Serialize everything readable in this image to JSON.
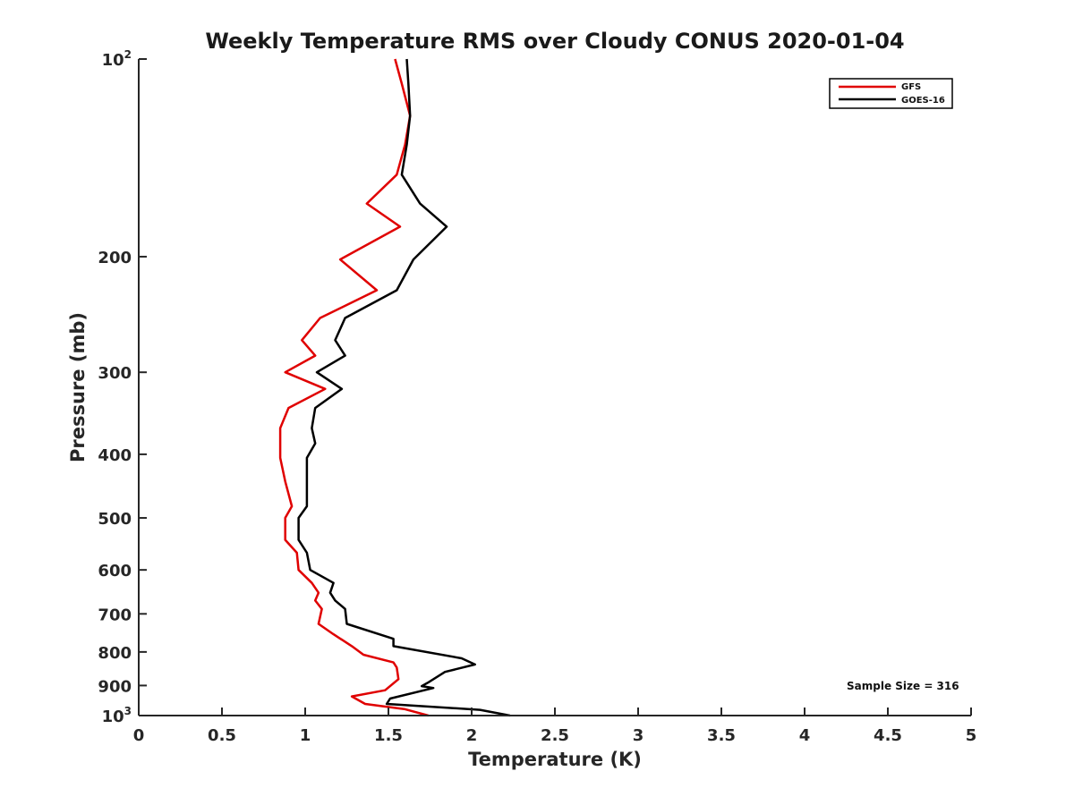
{
  "chart_data": {
    "type": "line",
    "title": "Weekly Temperature RMS over Cloudy CONUS 2020-01-04",
    "xlabel": "Temperature (K)",
    "ylabel": "Pressure (mb)",
    "xlim": [
      0,
      5
    ],
    "ylim": [
      100,
      1000
    ],
    "yscale": "log",
    "y_reversed": true,
    "grid": false,
    "xticks": [
      0,
      0.5,
      1,
      1.5,
      2,
      2.5,
      3,
      3.5,
      4,
      4.5,
      5
    ],
    "xtick_labels": [
      "0",
      "0.5",
      "1",
      "1.5",
      "2",
      "2.5",
      "3",
      "3.5",
      "4",
      "4.5",
      "5"
    ],
    "yticks": [
      100,
      200,
      300,
      400,
      500,
      600,
      700,
      800,
      900,
      1000
    ],
    "ytick_labels": [
      {
        "base": "10",
        "exp": "2"
      },
      {
        "base": "200",
        "exp": ""
      },
      {
        "base": "300",
        "exp": ""
      },
      {
        "base": "400",
        "exp": ""
      },
      {
        "base": "500",
        "exp": ""
      },
      {
        "base": "600",
        "exp": ""
      },
      {
        "base": "700",
        "exp": ""
      },
      {
        "base": "800",
        "exp": ""
      },
      {
        "base": "900",
        "exp": ""
      },
      {
        "base": "10",
        "exp": "3"
      }
    ],
    "legend_position": "top-right",
    "annotation": "Sample Size = 316",
    "series": [
      {
        "name": "GFS",
        "color": "#e00000",
        "points": [
          [
            1.54,
            100
          ],
          [
            1.58,
            109
          ],
          [
            1.63,
            122
          ],
          [
            1.6,
            135
          ],
          [
            1.55,
            150
          ],
          [
            1.37,
            166
          ],
          [
            1.57,
            180
          ],
          [
            1.21,
            202
          ],
          [
            1.43,
            225
          ],
          [
            1.09,
            248
          ],
          [
            0.98,
            268
          ],
          [
            1.06,
            283
          ],
          [
            0.88,
            300
          ],
          [
            1.12,
            318
          ],
          [
            0.9,
            340
          ],
          [
            0.85,
            365
          ],
          [
            0.85,
            405
          ],
          [
            0.88,
            440
          ],
          [
            0.92,
            480
          ],
          [
            0.88,
            500
          ],
          [
            0.88,
            540
          ],
          [
            0.95,
            565
          ],
          [
            0.96,
            600
          ],
          [
            1.04,
            628
          ],
          [
            1.08,
            650
          ],
          [
            1.06,
            668
          ],
          [
            1.1,
            688
          ],
          [
            1.08,
            725
          ],
          [
            1.17,
            752
          ],
          [
            1.28,
            784
          ],
          [
            1.35,
            808
          ],
          [
            1.53,
            830
          ],
          [
            1.55,
            845
          ],
          [
            1.56,
            880
          ],
          [
            1.48,
            915
          ],
          [
            1.28,
            935
          ],
          [
            1.36,
            960
          ],
          [
            1.6,
            978
          ],
          [
            1.74,
            1000
          ]
        ]
      },
      {
        "name": "GOES-16",
        "color": "#000000",
        "points": [
          [
            1.61,
            100
          ],
          [
            1.62,
            109
          ],
          [
            1.63,
            122
          ],
          [
            1.61,
            135
          ],
          [
            1.58,
            150
          ],
          [
            1.69,
            166
          ],
          [
            1.85,
            180
          ],
          [
            1.65,
            202
          ],
          [
            1.55,
            225
          ],
          [
            1.24,
            248
          ],
          [
            1.18,
            268
          ],
          [
            1.24,
            283
          ],
          [
            1.07,
            300
          ],
          [
            1.22,
            318
          ],
          [
            1.06,
            340
          ],
          [
            1.04,
            365
          ],
          [
            1.06,
            385
          ],
          [
            1.01,
            405
          ],
          [
            1.01,
            440
          ],
          [
            1.01,
            480
          ],
          [
            0.96,
            500
          ],
          [
            0.96,
            540
          ],
          [
            1.01,
            565
          ],
          [
            1.03,
            600
          ],
          [
            1.17,
            628
          ],
          [
            1.15,
            650
          ],
          [
            1.18,
            668
          ],
          [
            1.24,
            688
          ],
          [
            1.25,
            725
          ],
          [
            1.53,
            764
          ],
          [
            1.53,
            784
          ],
          [
            1.94,
            818
          ],
          [
            2.02,
            836
          ],
          [
            1.84,
            858
          ],
          [
            1.74,
            890
          ],
          [
            1.7,
            902
          ],
          [
            1.77,
            908
          ],
          [
            1.51,
            942
          ],
          [
            1.49,
            960
          ],
          [
            2.05,
            980
          ],
          [
            2.23,
            1000
          ]
        ]
      }
    ]
  }
}
